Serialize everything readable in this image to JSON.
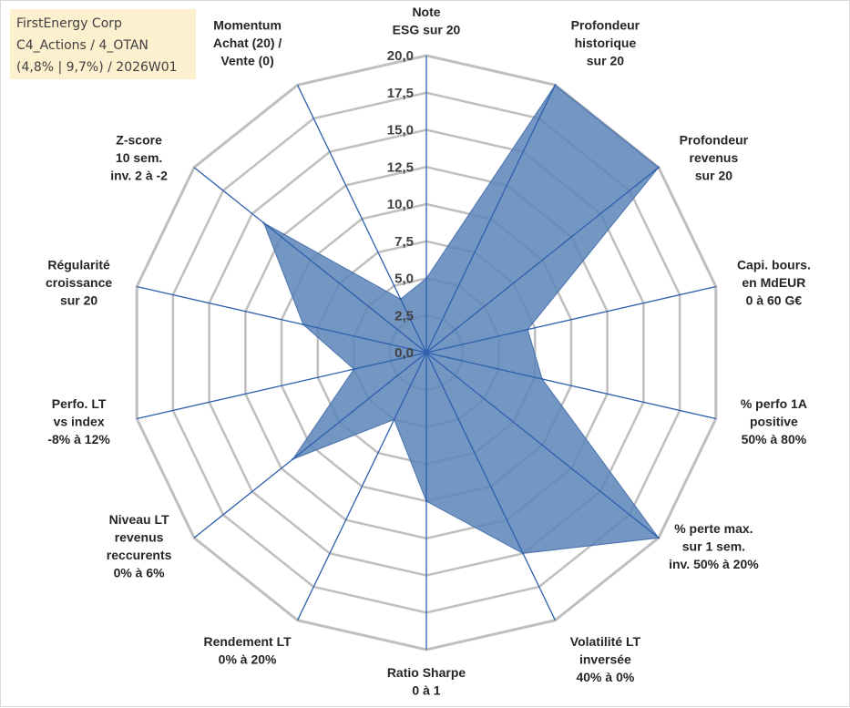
{
  "title_box": {
    "line1": "FirstEnergy Corp",
    "line2": "C4_Actions / 4_OTAN",
    "line3": "(4,8% | 9,7%) / 2026W01"
  },
  "chart_data": {
    "type": "radar",
    "title": "FirstEnergy Corp",
    "rmin": 0,
    "rmax": 20,
    "ticks": [
      "0,0",
      "2,5",
      "5,0",
      "7,5",
      "10,0",
      "12,5",
      "15,0",
      "17,5",
      "20,0"
    ],
    "categories": [
      [
        "Note",
        "ESG sur 20"
      ],
      [
        "Profondeur",
        "historique",
        "sur 20"
      ],
      [
        "Profondeur",
        "revenus",
        "sur 20"
      ],
      [
        "Capi. bours.",
        "en MdEUR",
        "0 à 60 G€"
      ],
      [
        "% perfo 1A",
        "positive",
        "50% à 80%"
      ],
      [
        "% perte max.",
        "sur 1 sem.",
        "inv. 50% à 20%"
      ],
      [
        "Volatilité LT",
        "inversée",
        "40% à 0%"
      ],
      [
        "Ratio Sharpe",
        "0 à 1"
      ],
      [
        "Rendement LT",
        "0% à 20%"
      ],
      [
        "Niveau LT",
        "revenus",
        "reccurents",
        "0% à 6%"
      ],
      [
        "Perfo. LT",
        "vs index",
        "-8% à 12%"
      ],
      [
        "Régularité",
        "croissance",
        "sur 20"
      ],
      [
        "Z-score",
        "10 sem.",
        "inv. 2 à -2"
      ],
      [
        "Momentum",
        "Achat (20) /",
        "Vente (0)"
      ]
    ],
    "series": [
      {
        "name": "FirstEnergy Corp",
        "values": [
          5,
          20,
          20,
          7,
          8,
          20,
          15,
          10,
          5,
          11.5,
          5,
          8.5,
          14,
          4
        ],
        "color": "#5b84b8",
        "line": "#4a72ad"
      }
    ],
    "grid_color": "#bfbfbf",
    "axis_color": "#2e60ad"
  }
}
